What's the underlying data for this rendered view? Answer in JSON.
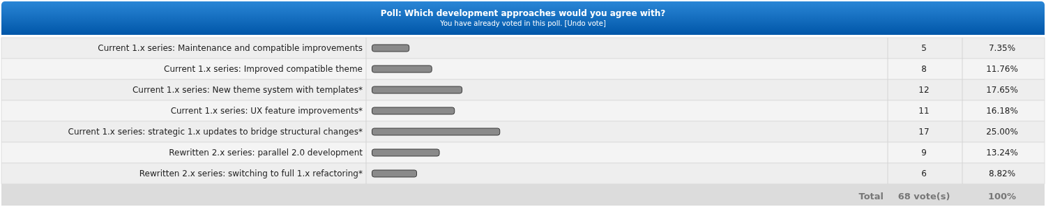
{
  "chart_data": {
    "type": "bar",
    "orientation": "horizontal",
    "title": "Poll: Which development approaches would you agree with?",
    "subtitle": "You have already voted in this poll. [Undo vote]",
    "categories": [
      "Current 1.x series: Maintenance and compatible improvements",
      "Current 1.x series: Improved compatible theme",
      "Current 1.x series: New theme system with templates*",
      "Current 1.x series: UX feature improvements*",
      "Current 1.x series: strategic 1.x updates to bridge structural changes*",
      "Rewritten 2.x series: parallel 2.0 development",
      "Rewritten 2.x series: switching to full 1.x refactoring*"
    ],
    "values": [
      5,
      8,
      12,
      11,
      17,
      9,
      6
    ],
    "color": "#8a8a8a",
    "data_labels": true,
    "annotations": [
      "7.35%",
      "11.76%",
      "17.65%",
      "16.18%",
      "25.00%",
      "13.24%",
      "8.82%",
      "Total",
      "68 vote(s)",
      "100%"
    ]
  }
}
